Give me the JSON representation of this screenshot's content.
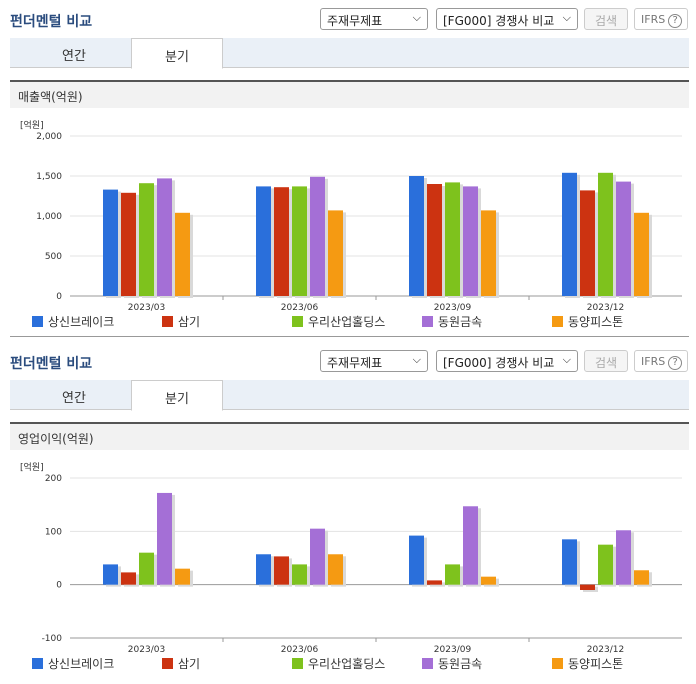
{
  "sections": [
    {
      "title": "펀더멘털 비교",
      "select1": "주재무제표",
      "select2": "[FG000] 경쟁사 비교",
      "search_label": "검색",
      "ifrs_label": "IFRS",
      "help": "?",
      "tabs": [
        "연간",
        "분기"
      ],
      "active_tab": 1,
      "subtitle": "매출액(억원)",
      "unit": "[억원]"
    },
    {
      "title": "펀더멘털 비교",
      "select1": "주재무제표",
      "select2": "[FG000] 경쟁사 비교",
      "search_label": "검색",
      "ifrs_label": "IFRS",
      "help": "?",
      "tabs": [
        "연간",
        "분기"
      ],
      "active_tab": 1,
      "subtitle": "영업이익(억원)",
      "unit": "[억원]"
    }
  ],
  "colors": [
    "#2a6fdb",
    "#cc3311",
    "#7ec21d",
    "#a46fd6",
    "#f59a12"
  ],
  "chart_data": [
    {
      "type": "bar",
      "title": "매출액(억원)",
      "ylabel": "[억원]",
      "categories": [
        "2023/03",
        "2023/06",
        "2023/09",
        "2023/12"
      ],
      "ylim": [
        0,
        2000
      ],
      "yticks": [
        "2,000",
        "1,500",
        "1,000",
        "500",
        "0"
      ],
      "ytick_values": [
        2000,
        1500,
        1000,
        500,
        0
      ],
      "series": [
        {
          "name": "상신브레이크",
          "values": [
            1330,
            1370,
            1500,
            1540
          ]
        },
        {
          "name": "삼기",
          "values": [
            1290,
            1360,
            1400,
            1320
          ]
        },
        {
          "name": "우리산업홀딩스",
          "values": [
            1410,
            1370,
            1420,
            1540
          ]
        },
        {
          "name": "동원금속",
          "values": [
            1470,
            1490,
            1370,
            1430
          ]
        },
        {
          "name": "동양피스톤",
          "values": [
            1040,
            1070,
            1070,
            1040
          ]
        }
      ]
    },
    {
      "type": "bar",
      "title": "영업이익(억원)",
      "ylabel": "[억원]",
      "categories": [
        "2023/03",
        "2023/06",
        "2023/09",
        "2023/12"
      ],
      "ylim": [
        -100,
        200
      ],
      "yticks": [
        "200",
        "100",
        "0",
        "-100"
      ],
      "ytick_values": [
        200,
        100,
        0,
        -100
      ],
      "series": [
        {
          "name": "상신브레이크",
          "values": [
            38,
            57,
            92,
            85
          ]
        },
        {
          "name": "삼기",
          "values": [
            23,
            53,
            8,
            -10
          ]
        },
        {
          "name": "우리산업홀딩스",
          "values": [
            60,
            38,
            38,
            75
          ]
        },
        {
          "name": "동원금속",
          "values": [
            172,
            105,
            147,
            102
          ]
        },
        {
          "name": "동양피스톤",
          "values": [
            30,
            57,
            15,
            27
          ]
        }
      ]
    }
  ]
}
